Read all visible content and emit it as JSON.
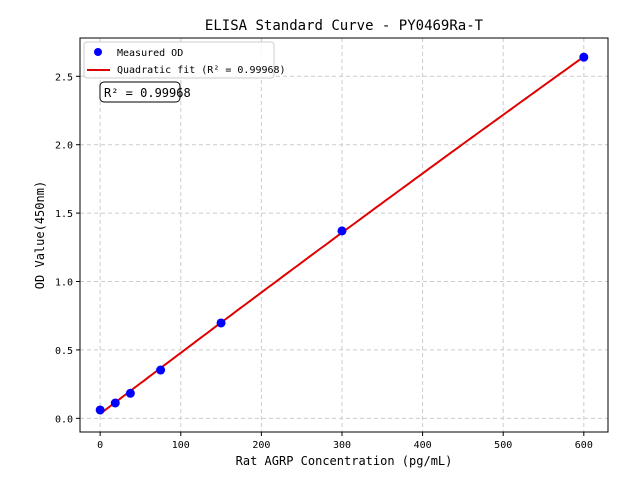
{
  "chart_data": {
    "type": "scatter",
    "title": "ELISA Standard Curve - PY0469Ra-T",
    "xlabel": "Rat AGRP Concentration (pg/mL)",
    "ylabel": "OD Value(450nm)",
    "xlim": [
      -25,
      630
    ],
    "ylim": [
      -0.1,
      2.78
    ],
    "xticks": [
      0,
      100,
      200,
      300,
      400,
      500,
      600
    ],
    "yticks": [
      0.0,
      0.5,
      1.0,
      1.5,
      2.0,
      2.5
    ],
    "grid": true,
    "legend_placement": "top-left",
    "series": [
      {
        "name": "Measured OD",
        "kind": "scatter",
        "color": "#0000ff",
        "x": [
          0,
          18.75,
          37.5,
          75,
          150,
          300,
          600
        ],
        "y": [
          0.061,
          0.112,
          0.183,
          0.353,
          0.697,
          1.37,
          2.64
        ]
      },
      {
        "name": "Quadratic fit (R² = 0.99968)",
        "kind": "line",
        "color": "#e00000"
      }
    ],
    "annotation": "R² = 0.99968"
  }
}
